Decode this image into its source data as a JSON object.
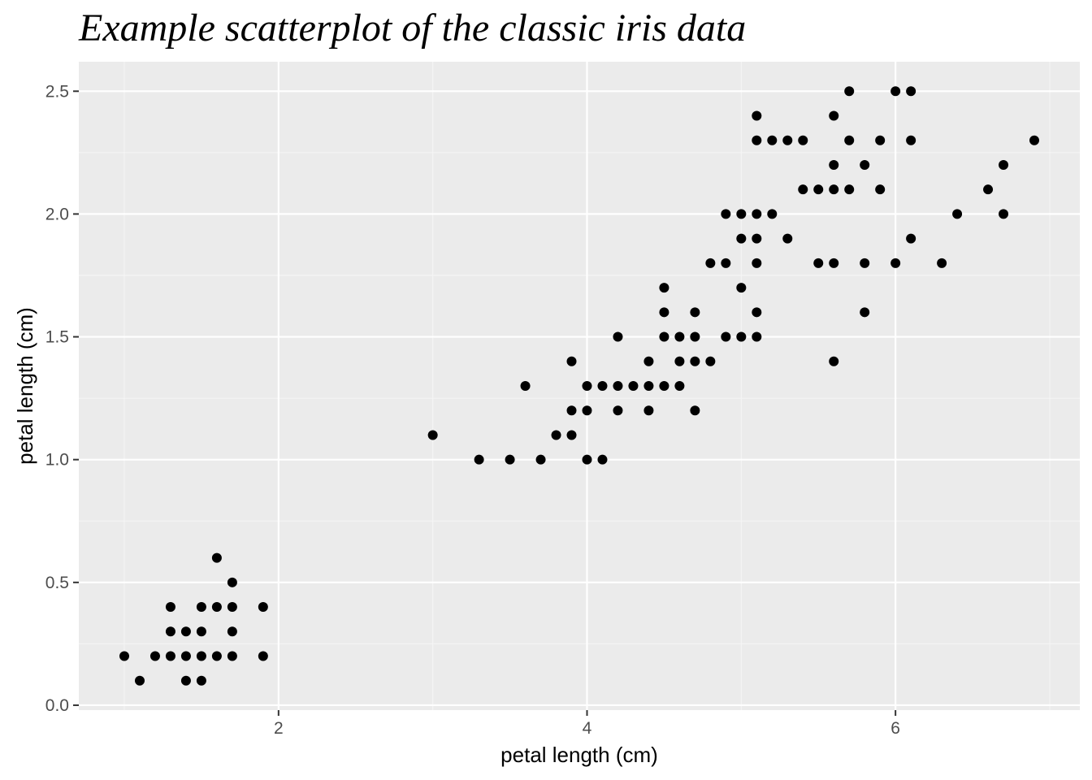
{
  "chart_data": {
    "type": "scatter",
    "title": "Example scatterplot of the classic iris data",
    "xlabel": "petal length (cm)",
    "ylabel": "petal length (cm)",
    "xlim": [
      0.705,
      7.195
    ],
    "ylim": [
      -0.02,
      2.62
    ],
    "x_ticks": [
      2,
      4,
      6
    ],
    "x_tick_labels": [
      "2",
      "4",
      "6"
    ],
    "y_ticks": [
      0.0,
      0.5,
      1.0,
      1.5,
      2.0,
      2.5
    ],
    "y_tick_labels": [
      "0.0",
      "0.5",
      "1.0",
      "1.5",
      "2.0",
      "2.5"
    ],
    "grid": true,
    "legend": "none",
    "colors": {
      "panel_background": "#ebebeb",
      "grid_major": "#ffffff",
      "grid_minor": "#f5f5f5",
      "point": "#000000",
      "tick_mark": "#333333"
    },
    "series": [
      {
        "points": [
          [
            1.0,
            0.2
          ],
          [
            1.1,
            0.1
          ],
          [
            1.2,
            0.2
          ],
          [
            1.3,
            0.2
          ],
          [
            1.3,
            0.3
          ],
          [
            1.3,
            0.4
          ],
          [
            1.4,
            0.1
          ],
          [
            1.4,
            0.2
          ],
          [
            1.4,
            0.3
          ],
          [
            1.5,
            0.1
          ],
          [
            1.5,
            0.2
          ],
          [
            1.5,
            0.3
          ],
          [
            1.5,
            0.4
          ],
          [
            1.6,
            0.2
          ],
          [
            1.6,
            0.4
          ],
          [
            1.6,
            0.6
          ],
          [
            1.7,
            0.2
          ],
          [
            1.7,
            0.3
          ],
          [
            1.7,
            0.4
          ],
          [
            1.7,
            0.5
          ],
          [
            1.9,
            0.2
          ],
          [
            1.9,
            0.4
          ],
          [
            3.0,
            1.1
          ],
          [
            3.3,
            1.0
          ],
          [
            3.5,
            1.0
          ],
          [
            3.6,
            1.3
          ],
          [
            3.7,
            1.0
          ],
          [
            3.8,
            1.1
          ],
          [
            3.9,
            1.1
          ],
          [
            3.9,
            1.2
          ],
          [
            3.9,
            1.4
          ],
          [
            4.0,
            1.0
          ],
          [
            4.0,
            1.2
          ],
          [
            4.0,
            1.3
          ],
          [
            4.1,
            1.0
          ],
          [
            4.1,
            1.3
          ],
          [
            4.2,
            1.2
          ],
          [
            4.2,
            1.3
          ],
          [
            4.2,
            1.5
          ],
          [
            4.3,
            1.3
          ],
          [
            4.4,
            1.2
          ],
          [
            4.4,
            1.3
          ],
          [
            4.4,
            1.4
          ],
          [
            4.5,
            1.3
          ],
          [
            4.5,
            1.5
          ],
          [
            4.5,
            1.6
          ],
          [
            4.5,
            1.7
          ],
          [
            4.6,
            1.3
          ],
          [
            4.6,
            1.4
          ],
          [
            4.6,
            1.5
          ],
          [
            4.7,
            1.2
          ],
          [
            4.7,
            1.4
          ],
          [
            4.7,
            1.5
          ],
          [
            4.7,
            1.6
          ],
          [
            4.8,
            1.4
          ],
          [
            4.8,
            1.8
          ],
          [
            4.9,
            1.5
          ],
          [
            4.9,
            1.8
          ],
          [
            4.9,
            2.0
          ],
          [
            5.0,
            1.5
          ],
          [
            5.0,
            1.7
          ],
          [
            5.0,
            1.9
          ],
          [
            5.0,
            2.0
          ],
          [
            5.1,
            1.5
          ],
          [
            5.1,
            1.6
          ],
          [
            5.1,
            1.8
          ],
          [
            5.1,
            1.9
          ],
          [
            5.1,
            2.0
          ],
          [
            5.1,
            2.3
          ],
          [
            5.1,
            2.4
          ],
          [
            5.2,
            2.0
          ],
          [
            5.2,
            2.3
          ],
          [
            5.3,
            1.9
          ],
          [
            5.3,
            2.3
          ],
          [
            5.4,
            2.1
          ],
          [
            5.4,
            2.3
          ],
          [
            5.5,
            1.8
          ],
          [
            5.5,
            2.1
          ],
          [
            5.6,
            1.4
          ],
          [
            5.6,
            1.8
          ],
          [
            5.6,
            2.1
          ],
          [
            5.6,
            2.2
          ],
          [
            5.6,
            2.4
          ],
          [
            5.7,
            2.1
          ],
          [
            5.7,
            2.3
          ],
          [
            5.7,
            2.5
          ],
          [
            5.8,
            1.6
          ],
          [
            5.8,
            1.8
          ],
          [
            5.8,
            2.2
          ],
          [
            5.9,
            2.1
          ],
          [
            5.9,
            2.3
          ],
          [
            6.0,
            1.8
          ],
          [
            6.0,
            2.5
          ],
          [
            6.1,
            1.9
          ],
          [
            6.1,
            2.3
          ],
          [
            6.1,
            2.5
          ],
          [
            6.3,
            1.8
          ],
          [
            6.4,
            2.0
          ],
          [
            6.6,
            2.1
          ],
          [
            6.7,
            2.0
          ],
          [
            6.7,
            2.2
          ],
          [
            6.9,
            2.3
          ]
        ]
      }
    ]
  }
}
